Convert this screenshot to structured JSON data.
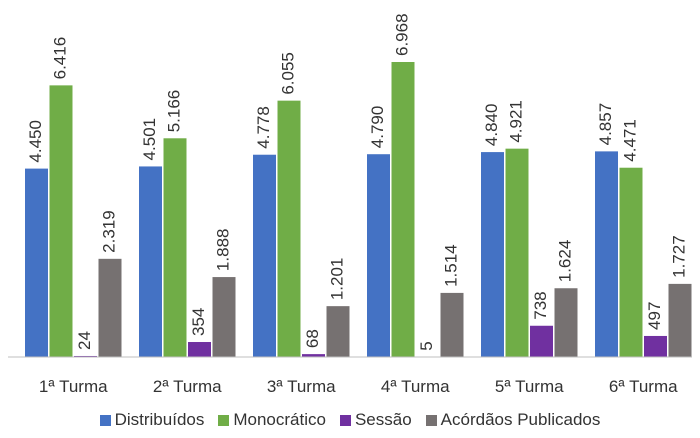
{
  "chart_data": {
    "type": "bar",
    "categories": [
      "1ª Turma",
      "2ª Turma",
      "3ª Turma",
      "4ª Turma",
      "5ª Turma",
      "6ª Turma"
    ],
    "series": [
      {
        "name": "Distribuídos",
        "color": "#4472C4",
        "values": [
          4450,
          4501,
          4778,
          4790,
          4840,
          4857
        ],
        "labels": [
          "4.450",
          "4.501",
          "4.778",
          "4.790",
          "4.840",
          "4.857"
        ]
      },
      {
        "name": "Monocrático",
        "color": "#70AD47",
        "values": [
          6416,
          5166,
          6055,
          6968,
          4921,
          4471
        ],
        "labels": [
          "6.416",
          "5.166",
          "6.055",
          "6.968",
          "4.921",
          "4.471"
        ]
      },
      {
        "name": "Sessão",
        "color": "#7030A0",
        "values": [
          24,
          354,
          68,
          5,
          738,
          497
        ],
        "labels": [
          "24",
          "354",
          "68",
          "5",
          "738",
          "497"
        ]
      },
      {
        "name": "Acórdãos Publicados",
        "color": "#767171",
        "values": [
          2319,
          1888,
          1201,
          1514,
          1624,
          1727
        ],
        "labels": [
          "2.319",
          "1.888",
          "1.201",
          "1.514",
          "1.624",
          "1.727"
        ]
      }
    ],
    "ylim": [
      0,
      7000
    ],
    "grid": false,
    "legend_position": "bottom"
  }
}
